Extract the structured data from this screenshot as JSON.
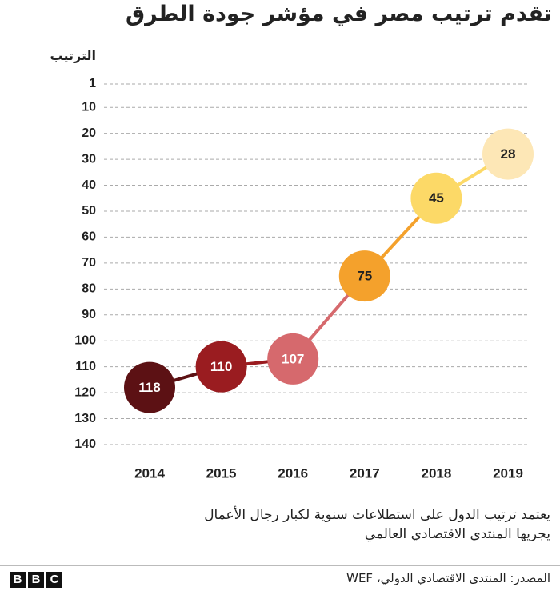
{
  "chart_data": {
    "type": "line",
    "title": "تقدم ترتيب مصر في مؤشر جودة الطرق",
    "y_label": "الترتيب",
    "categories": [
      "2014",
      "2015",
      "2016",
      "2017",
      "2018",
      "2019"
    ],
    "values": [
      118,
      110,
      107,
      75,
      45,
      28
    ],
    "colors": [
      "#5c1114",
      "#9a1c20",
      "#d6696d",
      "#f4a12c",
      "#fcd967",
      "#fde7b6"
    ],
    "ylim": [
      1,
      140
    ],
    "y_reversed": true,
    "yticks": [
      1,
      10,
      20,
      30,
      40,
      50,
      60,
      70,
      80,
      90,
      100,
      110,
      120,
      130,
      140
    ],
    "grid": true
  },
  "footer": {
    "notes": [
      "يعتمد ترتيب الدول على استطلاعات سنوية لكبار رجال الأعمال",
      "يجريها المنتدى الاقتصادي العالمي"
    ],
    "source": "المصدر: المنتدى الاقتصادي الدولي، WEF",
    "logo": [
      "B",
      "B",
      "C"
    ]
  }
}
